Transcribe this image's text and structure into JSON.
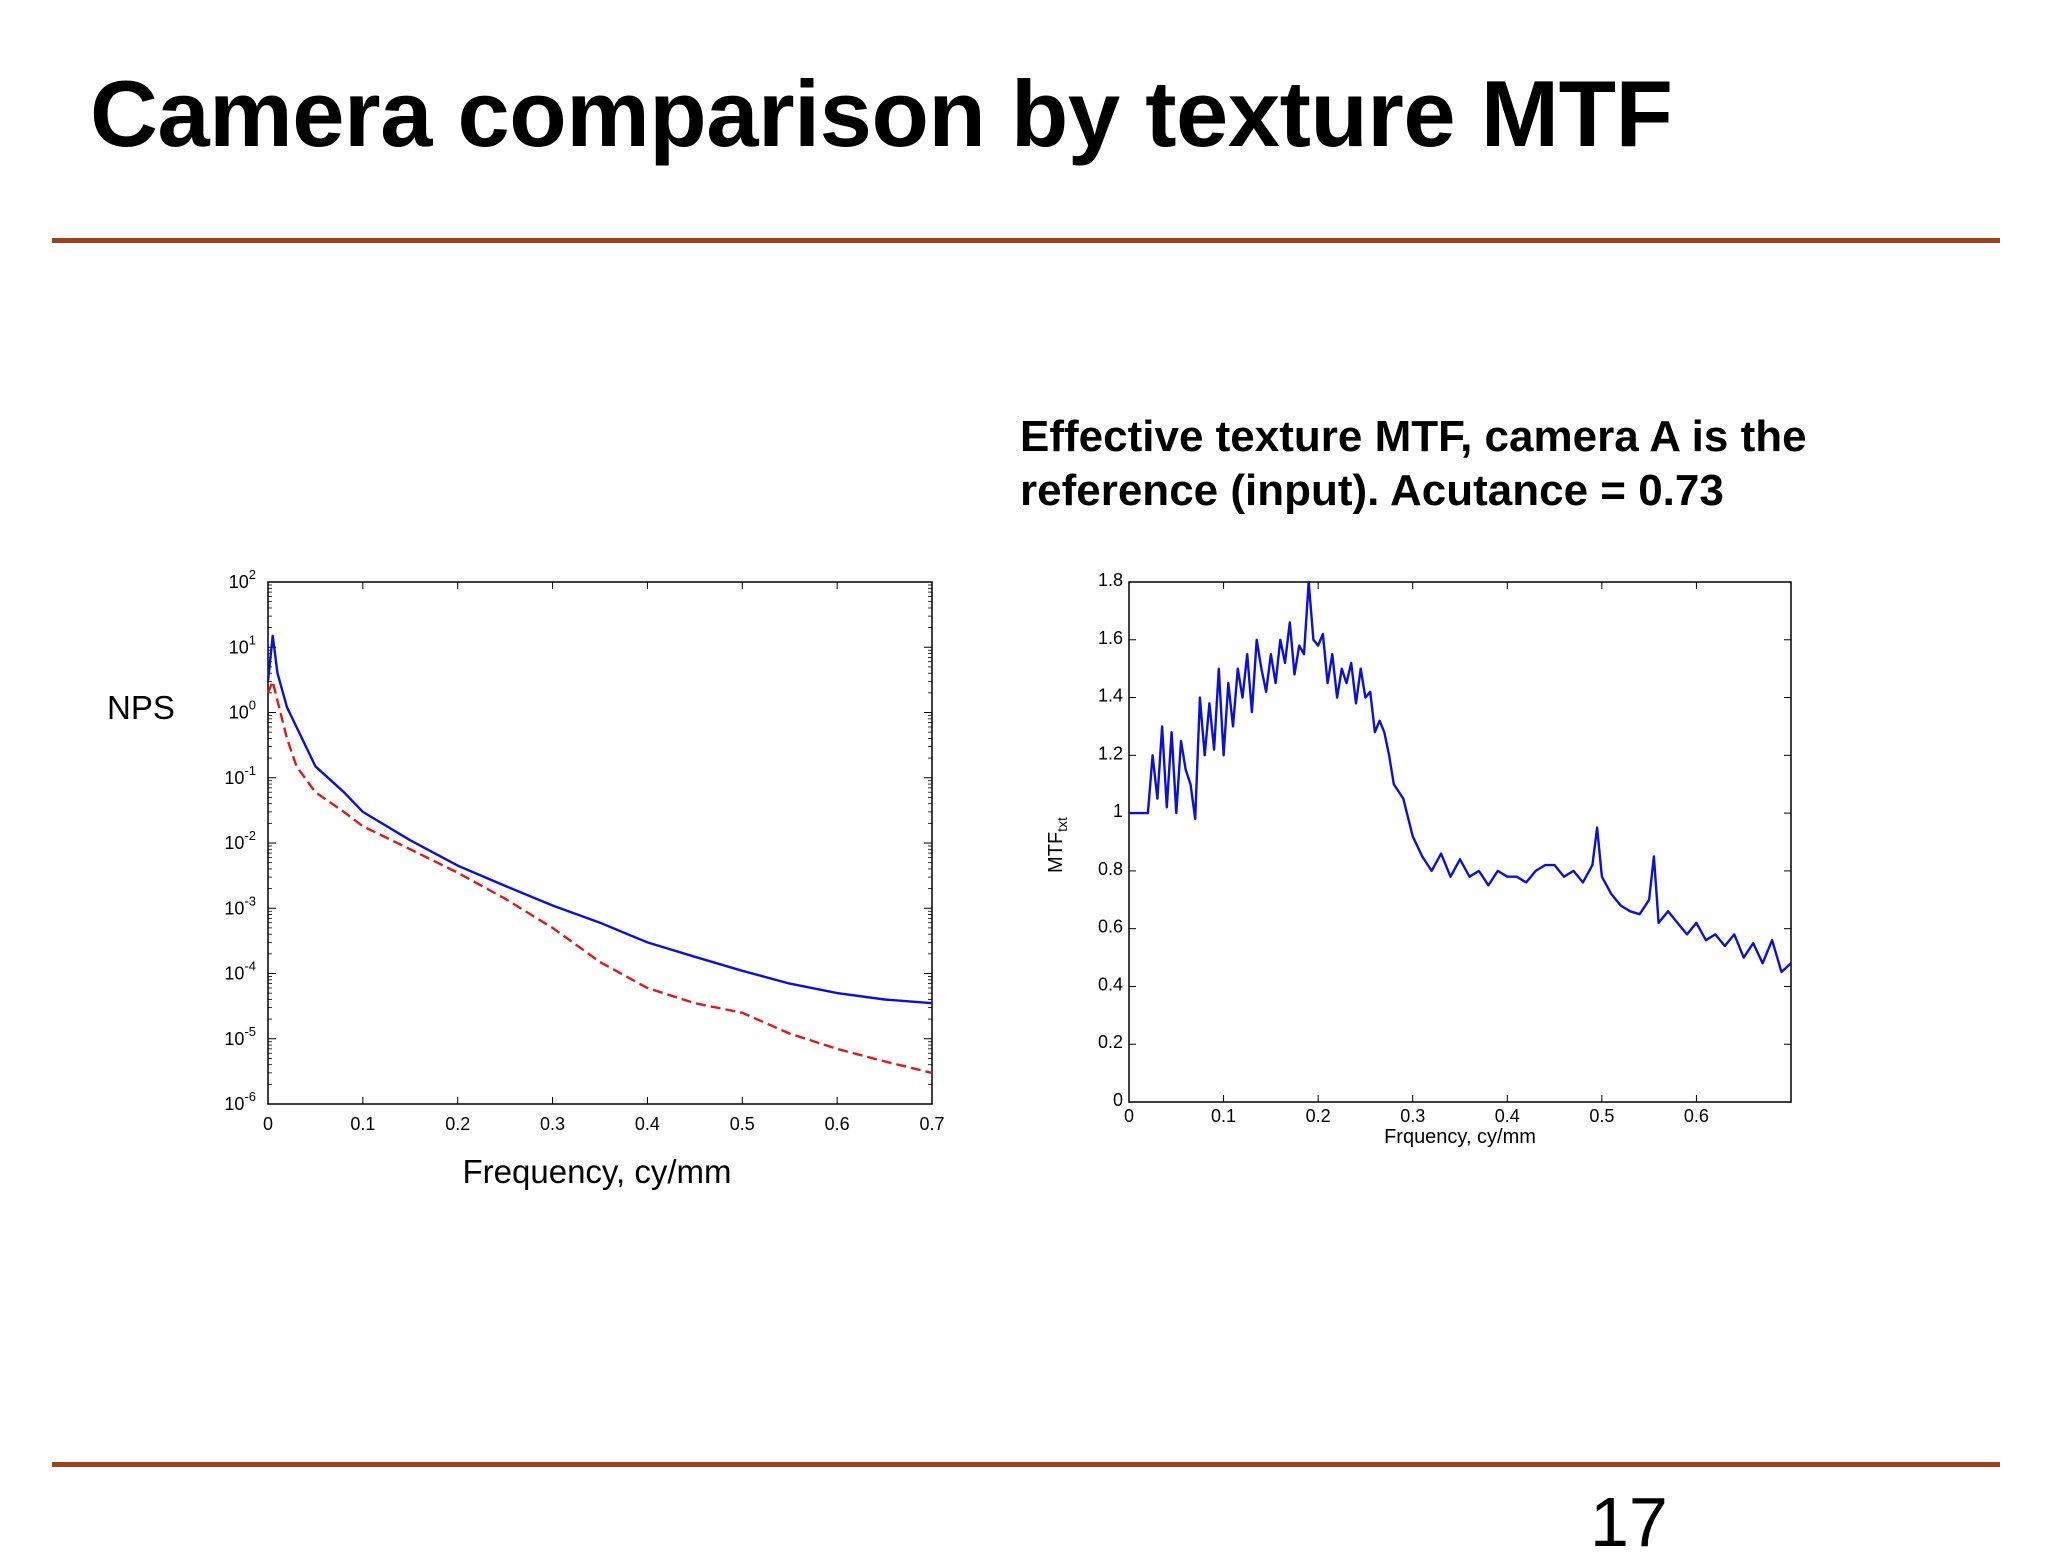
{
  "slide": {
    "title": "Camera comparison by texture MTF",
    "caption": "Effective texture MTF, camera A is the reference (input). Acutance = 0.73",
    "page_number": "17"
  },
  "colors": {
    "rule": "#a0401c",
    "series_blue": "#0a10d8",
    "series_red": "#e01818"
  },
  "chart_data": [
    {
      "type": "line",
      "title": "",
      "xlabel": "Frequency, cy/mm",
      "ylabel": "NPS",
      "yscale": "log",
      "xlim": [
        0,
        0.7
      ],
      "ylim": [
        1e-06,
        100
      ],
      "x_ticks": [
        "0",
        "0.1",
        "0.2",
        "0.3",
        "0.4",
        "0.5",
        "0.6",
        "0.7"
      ],
      "y_ticks": [
        {
          "base": "10",
          "exp": "-6"
        },
        {
          "base": "10",
          "exp": "-5"
        },
        {
          "base": "10",
          "exp": "-4"
        },
        {
          "base": "10",
          "exp": "-3"
        },
        {
          "base": "10",
          "exp": "-2"
        },
        {
          "base": "10",
          "exp": "-1"
        },
        {
          "base": "10",
          "exp": "0"
        },
        {
          "base": "10",
          "exp": "1"
        },
        {
          "base": "10",
          "exp": "2"
        }
      ],
      "grid": false,
      "series": [
        {
          "style": "solid",
          "color": "#0a10d8",
          "x": [
            0,
            0.005,
            0.01,
            0.02,
            0.03,
            0.05,
            0.08,
            0.1,
            0.15,
            0.2,
            0.25,
            0.3,
            0.35,
            0.4,
            0.45,
            0.5,
            0.55,
            0.6,
            0.65,
            0.7
          ],
          "y": [
            3,
            15,
            4,
            1.2,
            0.6,
            0.15,
            0.06,
            0.03,
            0.011,
            0.0045,
            0.0022,
            0.0011,
            0.0006,
            0.0003,
            0.00018,
            0.00011,
            7e-05,
            5e-05,
            4e-05,
            3.5e-05
          ]
        },
        {
          "style": "dashed",
          "color": "#e01818",
          "x": [
            0,
            0.005,
            0.01,
            0.02,
            0.03,
            0.05,
            0.08,
            0.1,
            0.15,
            0.2,
            0.25,
            0.3,
            0.35,
            0.4,
            0.45,
            0.5,
            0.55,
            0.6,
            0.65,
            0.7
          ],
          "y": [
            2,
            3,
            1.5,
            0.4,
            0.15,
            0.06,
            0.03,
            0.018,
            0.008,
            0.0035,
            0.0014,
            0.0005,
            0.00015,
            6e-05,
            3.5e-05,
            2.5e-05,
            1.2e-05,
            7e-06,
            4.5e-06,
            3e-06
          ]
        }
      ]
    },
    {
      "type": "line",
      "title": "",
      "xlabel": "Frquency, cy/mm",
      "ylabel": "MTF",
      "ylabel_sub": "txt",
      "xlim": [
        0,
        0.7
      ],
      "ylim": [
        0,
        1.8
      ],
      "x_ticks": [
        "0",
        "0.1",
        "0.2",
        "0.3",
        "0.4",
        "0.5",
        "0.6"
      ],
      "y_ticks": [
        "0",
        "0.2",
        "0.4",
        "0.6",
        "0.8",
        "1",
        "1.2",
        "1.4",
        "1.6",
        "1.8"
      ],
      "grid": false,
      "series": [
        {
          "style": "solid",
          "color": "#0a10d8",
          "x": [
            0,
            0.01,
            0.02,
            0.025,
            0.03,
            0.035,
            0.04,
            0.045,
            0.05,
            0.055,
            0.06,
            0.065,
            0.07,
            0.075,
            0.08,
            0.085,
            0.09,
            0.095,
            0.1,
            0.105,
            0.11,
            0.115,
            0.12,
            0.125,
            0.13,
            0.135,
            0.14,
            0.145,
            0.15,
            0.155,
            0.16,
            0.165,
            0.17,
            0.175,
            0.18,
            0.185,
            0.19,
            0.195,
            0.2,
            0.205,
            0.21,
            0.215,
            0.22,
            0.225,
            0.23,
            0.235,
            0.24,
            0.245,
            0.25,
            0.255,
            0.26,
            0.265,
            0.27,
            0.275,
            0.28,
            0.29,
            0.3,
            0.31,
            0.32,
            0.33,
            0.34,
            0.35,
            0.36,
            0.37,
            0.38,
            0.39,
            0.4,
            0.41,
            0.42,
            0.43,
            0.44,
            0.45,
            0.46,
            0.47,
            0.48,
            0.49,
            0.495,
            0.5,
            0.51,
            0.52,
            0.53,
            0.54,
            0.55,
            0.555,
            0.56,
            0.57,
            0.58,
            0.59,
            0.6,
            0.61,
            0.62,
            0.63,
            0.64,
            0.65,
            0.66,
            0.67,
            0.68,
            0.69,
            0.7
          ],
          "y": [
            1,
            1,
            1,
            1.2,
            1.05,
            1.3,
            1.02,
            1.28,
            1.0,
            1.25,
            1.15,
            1.1,
            0.98,
            1.4,
            1.2,
            1.38,
            1.22,
            1.5,
            1.2,
            1.45,
            1.3,
            1.5,
            1.4,
            1.55,
            1.35,
            1.6,
            1.5,
            1.42,
            1.55,
            1.45,
            1.6,
            1.52,
            1.66,
            1.48,
            1.58,
            1.55,
            1.8,
            1.6,
            1.58,
            1.62,
            1.45,
            1.55,
            1.4,
            1.5,
            1.45,
            1.52,
            1.38,
            1.5,
            1.4,
            1.42,
            1.28,
            1.32,
            1.28,
            1.2,
            1.1,
            1.05,
            0.92,
            0.85,
            0.8,
            0.86,
            0.78,
            0.84,
            0.78,
            0.8,
            0.75,
            0.8,
            0.78,
            0.78,
            0.76,
            0.8,
            0.82,
            0.82,
            0.78,
            0.8,
            0.76,
            0.82,
            0.95,
            0.78,
            0.72,
            0.68,
            0.66,
            0.65,
            0.7,
            0.85,
            0.62,
            0.66,
            0.62,
            0.58,
            0.62,
            0.56,
            0.58,
            0.54,
            0.58,
            0.5,
            0.55,
            0.48,
            0.56,
            0.45,
            0.48
          ]
        }
      ]
    }
  ]
}
